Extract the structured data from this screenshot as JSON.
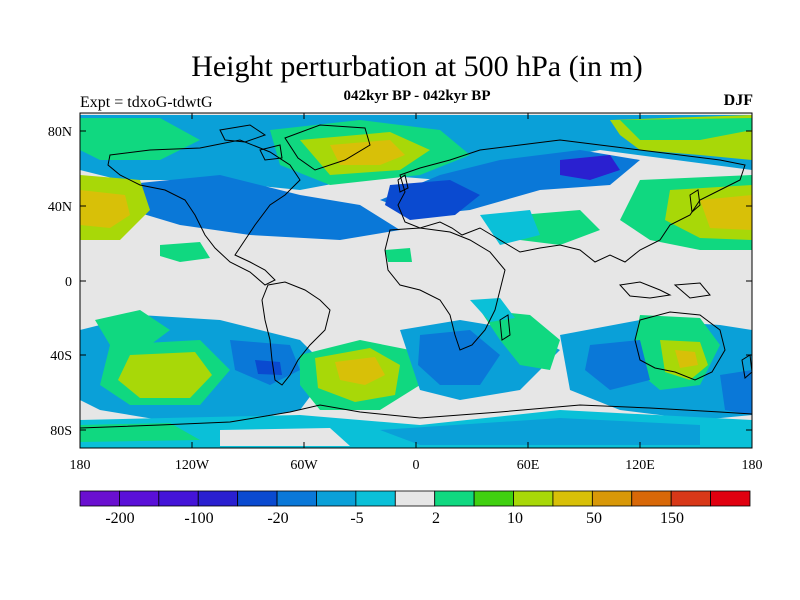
{
  "header": {
    "title": "Height perturbation at 500 hPa (in m)",
    "experiment": "Expt = tdxoG-tdwtG",
    "subtitle": "042kyr BP - 042kyr BP",
    "season": "DJF"
  },
  "map": {
    "projection": "cylindrical-equidistant",
    "lon_range": [
      -180,
      180
    ],
    "lat_range": [
      -90,
      90
    ],
    "x_ticks": [
      "180",
      "120W",
      "60W",
      "0",
      "60E",
      "120E",
      "180"
    ],
    "y_ticks": [
      "80N",
      "40N",
      "0",
      "40S",
      "80S"
    ],
    "land_outline_color": "#000000",
    "background_color": "#e6e6e6"
  },
  "colorbar": {
    "colors": [
      "#6a0fd0",
      "#5a10d8",
      "#4414d8",
      "#2a20d0",
      "#0a4ad0",
      "#0a78d8",
      "#0aa0d8",
      "#0ac0d8",
      "#e6e6e6",
      "#10d880",
      "#40d010",
      "#a8d808",
      "#d8c008",
      "#d89808",
      "#d86808",
      "#d83818",
      "#e00010"
    ],
    "labels": [
      "-200",
      "-100",
      "-20",
      "-5",
      "2",
      "10",
      "50",
      "150"
    ]
  }
}
